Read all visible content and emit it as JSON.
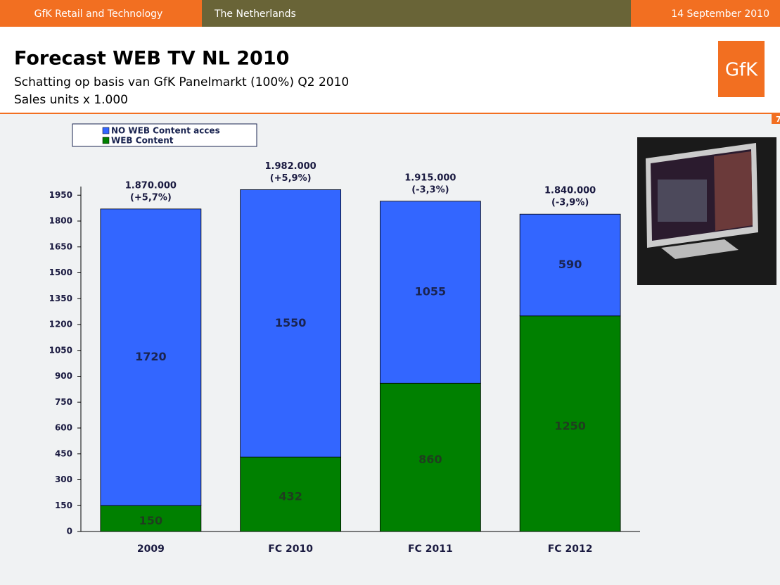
{
  "slide": {
    "header_left": "GfK Retail and Technology",
    "header_middle": "The Netherlands",
    "header_right": "14 September 2010",
    "logo": "GfK",
    "page": "7"
  },
  "chart_data": {
    "type": "stacked_bar",
    "title": "Forecast WEB TV NL 2010",
    "subtitle": "Schatting op basis van GfK Panelmarkt (100%) Q2 2010",
    "units": "Sales units x 1.000",
    "categories": [
      "2009",
      "FC 2010",
      "FC 2011",
      "FC 2012"
    ],
    "series": [
      {
        "name": "WEB Content",
        "color": "#008000",
        "values": [
          150,
          432,
          860,
          1250
        ]
      },
      {
        "name": "NO WEB Content acces",
        "color": "#3366ff",
        "values": [
          1720,
          1550,
          1055,
          590
        ]
      }
    ],
    "totals": [
      "1.870.000",
      "1.982.000",
      "1.915.000",
      "1.840.000"
    ],
    "changes": [
      "(+5,7%)",
      "(+5,9%)",
      "(-3,3%)",
      "(-3,9%)"
    ],
    "ylim": [
      0,
      2000
    ],
    "yticks": [
      0,
      150,
      300,
      450,
      600,
      750,
      900,
      1050,
      1200,
      1350,
      1500,
      1650,
      1800,
      1950
    ],
    "legend": "top-left"
  }
}
